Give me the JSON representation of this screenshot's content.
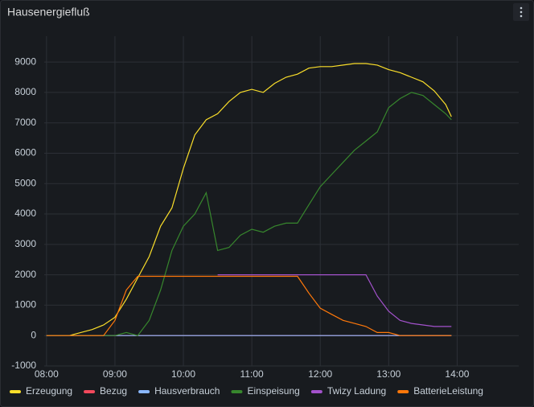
{
  "chart_data": {
    "type": "line",
    "title": "Hausenergiefluß",
    "x": [
      "08:00",
      "08:10",
      "08:20",
      "08:30",
      "08:40",
      "08:50",
      "09:00",
      "09:10",
      "09:20",
      "09:30",
      "09:40",
      "09:50",
      "10:00",
      "10:10",
      "10:20",
      "10:30",
      "10:40",
      "10:50",
      "11:00",
      "11:10",
      "11:20",
      "11:30",
      "11:40",
      "11:50",
      "12:00",
      "12:10",
      "12:20",
      "12:30",
      "12:40",
      "12:50",
      "13:00",
      "13:10",
      "13:20",
      "13:30",
      "13:40",
      "13:50",
      "13:55"
    ],
    "xlim": [
      "07:58",
      "14:54"
    ],
    "xticks": [
      "08:00",
      "09:00",
      "10:00",
      "11:00",
      "12:00",
      "13:00",
      "14:00"
    ],
    "ylim": [
      -1000,
      9850
    ],
    "yticks": [
      -1000,
      0,
      1000,
      2000,
      3000,
      4000,
      5000,
      6000,
      7000,
      8000,
      9000
    ],
    "grid": true,
    "legend": "bottom",
    "series": [
      {
        "name": "Erzeugung",
        "color": "#fade2a",
        "values": [
          0,
          0,
          0,
          100,
          200,
          350,
          600,
          1200,
          1900,
          2600,
          3600,
          4200,
          5500,
          6600,
          7100,
          7300,
          7700,
          8000,
          8100,
          8000,
          8300,
          8500,
          8600,
          8800,
          8850,
          8850,
          8900,
          8950,
          8950,
          8900,
          8750,
          8650,
          8500,
          8350,
          8050,
          7600,
          7200
        ]
      },
      {
        "name": "Bezug",
        "color": "#f2495c",
        "values": [
          0,
          0,
          0,
          0,
          0,
          0,
          0,
          0,
          0,
          0,
          0,
          0,
          0,
          0,
          0,
          0,
          0,
          0,
          0,
          0,
          0,
          0,
          0,
          0,
          0,
          0,
          0,
          0,
          0,
          0,
          0,
          0,
          0,
          0,
          0,
          0,
          0
        ]
      },
      {
        "name": "Hausverbrauch",
        "color": "#8ab8ff",
        "values": [
          0,
          0,
          0,
          0,
          0,
          0,
          0,
          0,
          0,
          0,
          0,
          0,
          0,
          0,
          0,
          0,
          0,
          0,
          0,
          0,
          0,
          0,
          0,
          0,
          0,
          0,
          0,
          0,
          0,
          0,
          0,
          0,
          0,
          0,
          0,
          0,
          0
        ]
      },
      {
        "name": "Einspeisung",
        "color": "#37872d",
        "values": [
          0,
          0,
          0,
          0,
          0,
          0,
          0,
          100,
          0,
          500,
          1500,
          2800,
          3600,
          4000,
          4700,
          2800,
          2900,
          3300,
          3500,
          3400,
          3600,
          3700,
          3700,
          4300,
          4900,
          5300,
          5700,
          6100,
          6400,
          6700,
          7500,
          7800,
          8000,
          7900,
          7600,
          7300,
          7100
        ]
      },
      {
        "name": "Twizy Ladung",
        "color": "#a352cc",
        "values": [
          null,
          null,
          null,
          null,
          null,
          null,
          null,
          null,
          null,
          null,
          null,
          null,
          null,
          null,
          null,
          2000,
          2000,
          2000,
          2000,
          2000,
          2000,
          2000,
          2000,
          2000,
          2000,
          2000,
          2000,
          2000,
          2000,
          1300,
          800,
          500,
          400,
          350,
          300,
          300,
          300
        ]
      },
      {
        "name": "BatterieLeistung",
        "color": "#ff780a",
        "values": [
          0,
          0,
          0,
          0,
          0,
          0,
          500,
          1500,
          1950,
          1950,
          1950,
          1950,
          1950,
          1950,
          1950,
          1950,
          1950,
          1950,
          1950,
          1950,
          1950,
          1950,
          1950,
          1400,
          900,
          700,
          500,
          400,
          300,
          100,
          100,
          0,
          0,
          0,
          0,
          0,
          0
        ]
      }
    ]
  }
}
